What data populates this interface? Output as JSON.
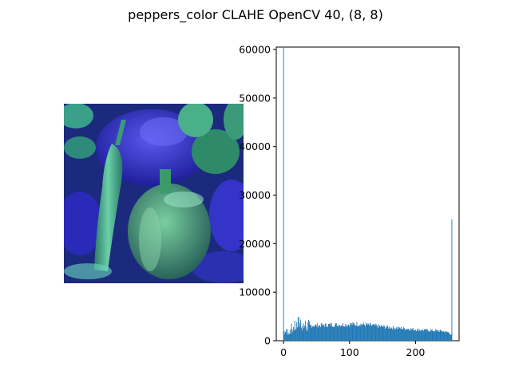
{
  "figure": {
    "title": "peppers_color CLAHE OpenCV 40, (8, 8)"
  },
  "image_panel": {
    "description_colors": {
      "background": "#1a2a7a",
      "blue_pepper": "#3030c8",
      "green_pepper": "#3a9a6a",
      "highlight": "#8ae0c0"
    }
  },
  "chart_data": {
    "type": "bar",
    "title": "",
    "xlabel": "",
    "ylabel": "",
    "xlim": [
      -11,
      266
    ],
    "ylim": [
      0,
      60500
    ],
    "xticks": [
      0,
      100,
      200
    ],
    "yticks": [
      0,
      10000,
      20000,
      30000,
      40000,
      50000,
      60000
    ],
    "bar_color": "#1f77b4",
    "bins": 256,
    "spikes": [
      {
        "x": 0,
        "value": 60500
      },
      {
        "x": 255,
        "value": 25000
      }
    ],
    "envelope": [
      {
        "x": 1,
        "value": 2000
      },
      {
        "x": 5,
        "value": 1800
      },
      {
        "x": 10,
        "value": 2400
      },
      {
        "x": 20,
        "value": 3200
      },
      {
        "x": 25,
        "value": 4200
      },
      {
        "x": 30,
        "value": 3300
      },
      {
        "x": 40,
        "value": 3100
      },
      {
        "x": 60,
        "value": 3200
      },
      {
        "x": 80,
        "value": 3300
      },
      {
        "x": 100,
        "value": 3350
      },
      {
        "x": 115,
        "value": 3450
      },
      {
        "x": 130,
        "value": 3200
      },
      {
        "x": 150,
        "value": 2900
      },
      {
        "x": 170,
        "value": 2650
      },
      {
        "x": 190,
        "value": 2450
      },
      {
        "x": 210,
        "value": 2200
      },
      {
        "x": 240,
        "value": 2000
      },
      {
        "x": 250,
        "value": 1700
      },
      {
        "x": 254,
        "value": 1300
      }
    ],
    "grid": false
  }
}
